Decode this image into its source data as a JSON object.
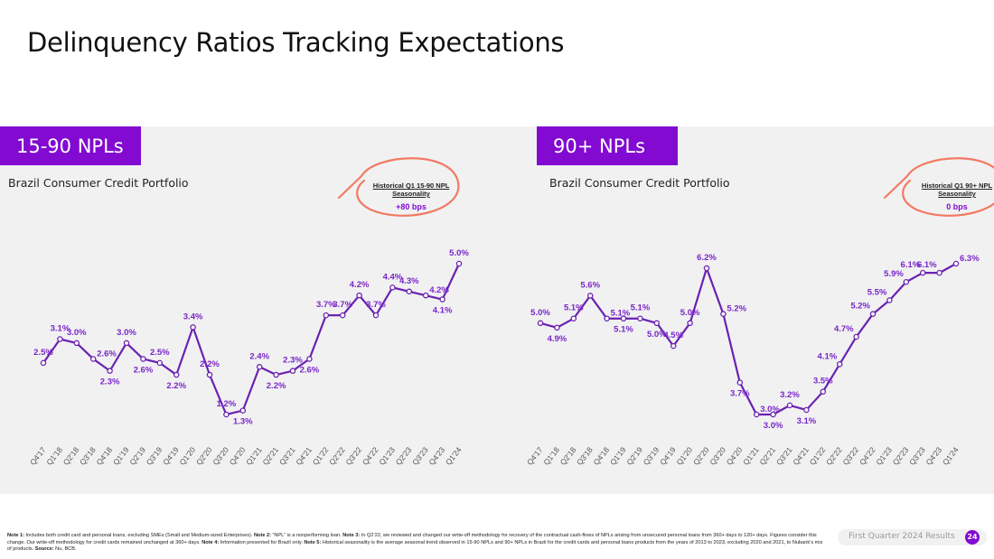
{
  "page": {
    "title": "Delinquency Ratios Tracking Expectations",
    "page_label": "First Quarter 2024 Results",
    "page_number": "24"
  },
  "colors": {
    "accent": "#820ad1",
    "line": "#6a22b0",
    "label": "#7a26c9",
    "annotation": "#f27a63",
    "band": "#f1f1f2"
  },
  "footnotes": [
    {
      "b": "Note 1:",
      "t": " Includes both credit card and personal loans, excluding SMEs (Small and Medium-sized Enterprises). "
    },
    {
      "b": "Note 2:",
      "t": " “NPL” is a nonperforming loan. "
    },
    {
      "b": "Note 3:",
      "t": " In Q2’22, we reviewed and changed our write-off methodology for recovery of the contractual cash-flows of NPLs arising from unsecured personal loans from 360+ days to 120+ days. Figures consider this change. Our write-off methodology for credit cards remained unchanged at 360+ days. "
    },
    {
      "b": "Note 4:",
      "t": " Information presented for Brazil only. "
    },
    {
      "b": "Note 5:",
      "t": " Historical seasonality is the average seasonal trend observed in 15-90 NPLs and 90+ NPLs in Brazil for the credit cards and personal loans products from the years of 2013 to 2023, excluding 2020 and 2021, to Nubank’s mix of products. "
    },
    {
      "b": "Source:",
      "t": " Nu, BCB."
    }
  ],
  "chart_data": [
    {
      "type": "line",
      "tag": "15-90 NPLs",
      "title": "Brazil Consumer Credit Portfolio",
      "callout_title": "Historical Q1 15-90 NPL Seasonality",
      "callout_value": "+80 bps",
      "ylabel": "",
      "xlabel": "",
      "ylim": [
        0,
        7
      ],
      "categories": [
        "Q4'17",
        "Q1'18",
        "Q2'18",
        "Q3'18",
        "Q4'18",
        "Q1'19",
        "Q2'19",
        "Q3'19",
        "Q4'19",
        "Q1'20",
        "Q2'20",
        "Q3'20",
        "Q4'20",
        "Q1'21",
        "Q2'21",
        "Q3'21",
        "Q4'21",
        "Q1'22",
        "Q2'22",
        "Q3'22",
        "Q4'22",
        "Q1'23",
        "Q2'23",
        "Q3'23",
        "Q4'23",
        "Q1'24"
      ],
      "values": [
        2.5,
        3.1,
        3.0,
        2.6,
        2.3,
        3.0,
        2.6,
        2.5,
        2.2,
        3.4,
        2.2,
        1.2,
        1.3,
        2.4,
        2.2,
        2.3,
        2.6,
        3.7,
        3.7,
        4.2,
        3.7,
        4.4,
        4.3,
        4.2,
        4.1,
        5.0
      ],
      "labels": [
        "2.5%",
        "3.1%",
        "3.0%",
        "2.6%",
        "2.3%",
        "3.0%",
        "2.6%",
        "2.5%",
        "2.2%",
        "3.4%",
        "2.2%",
        "1.2%",
        "1.3%",
        "2.4%",
        "2.2%",
        "2.3%",
        "2.6%",
        "3.7%",
        "3.7%",
        "4.2%",
        "3.7%",
        "4.4%",
        "4.3%",
        "4.2%",
        "4.1%",
        "5.0%"
      ],
      "label_positions": [
        "above",
        "above",
        "above",
        "right",
        "below",
        "above",
        "below",
        "above",
        "below",
        "above",
        "above",
        "above",
        "below",
        "above",
        "below",
        "above",
        "below",
        "above",
        "above",
        "above",
        "above",
        "above",
        "above",
        "right",
        "below",
        "above"
      ]
    },
    {
      "type": "line",
      "tag": "90+ NPLs",
      "title": "Brazil Consumer Credit Portfolio",
      "callout_title": "Historical Q1 90+ NPL Seasonality",
      "callout_value": "0 bps",
      "ylabel": "",
      "xlabel": "",
      "ylim": [
        0,
        8.5
      ],
      "categories": [
        "Q4'17",
        "Q1'18",
        "Q2'18",
        "Q3'18",
        "Q4'18",
        "Q1'19",
        "Q2'19",
        "Q3'19",
        "Q4'19",
        "Q1'20",
        "Q2'20",
        "Q3'20",
        "Q4'20",
        "Q1'21",
        "Q2'21",
        "Q3'21",
        "Q4'21",
        "Q1'22",
        "Q2'22",
        "Q3'22",
        "Q4'22",
        "Q1'23",
        "Q2'23",
        "Q3'23",
        "Q4'23",
        "Q1'24"
      ],
      "values": [
        5.0,
        4.9,
        5.1,
        5.6,
        5.1,
        5.1,
        5.1,
        5.0,
        4.5,
        5.0,
        6.2,
        5.2,
        3.7,
        3.0,
        3.0,
        3.2,
        3.1,
        3.5,
        4.1,
        4.7,
        5.2,
        5.5,
        5.9,
        6.1,
        6.1,
        6.3
      ],
      "labels": [
        "5.0%",
        "4.9%",
        "5.1%",
        "5.6%",
        "5.1%",
        "5.1%",
        "5.1%",
        "5.0%",
        "4.5%",
        "5.0%",
        "6.2%",
        "5.2%",
        "3.7%",
        "3.0%",
        "3.0%",
        "3.2%",
        "3.1%",
        "3.5%",
        "4.1%",
        "4.7%",
        "5.2%",
        "5.5%",
        "5.9%",
        "6.1%",
        "6.1%",
        "6.3%"
      ],
      "label_positions": [
        "above",
        "below",
        "above",
        "above",
        "right",
        "below",
        "above",
        "below",
        "above",
        "above",
        "above",
        "right",
        "below",
        "right",
        "below",
        "above",
        "below",
        "above",
        "left",
        "left",
        "left",
        "left",
        "left",
        "left",
        "left",
        "right"
      ]
    }
  ]
}
